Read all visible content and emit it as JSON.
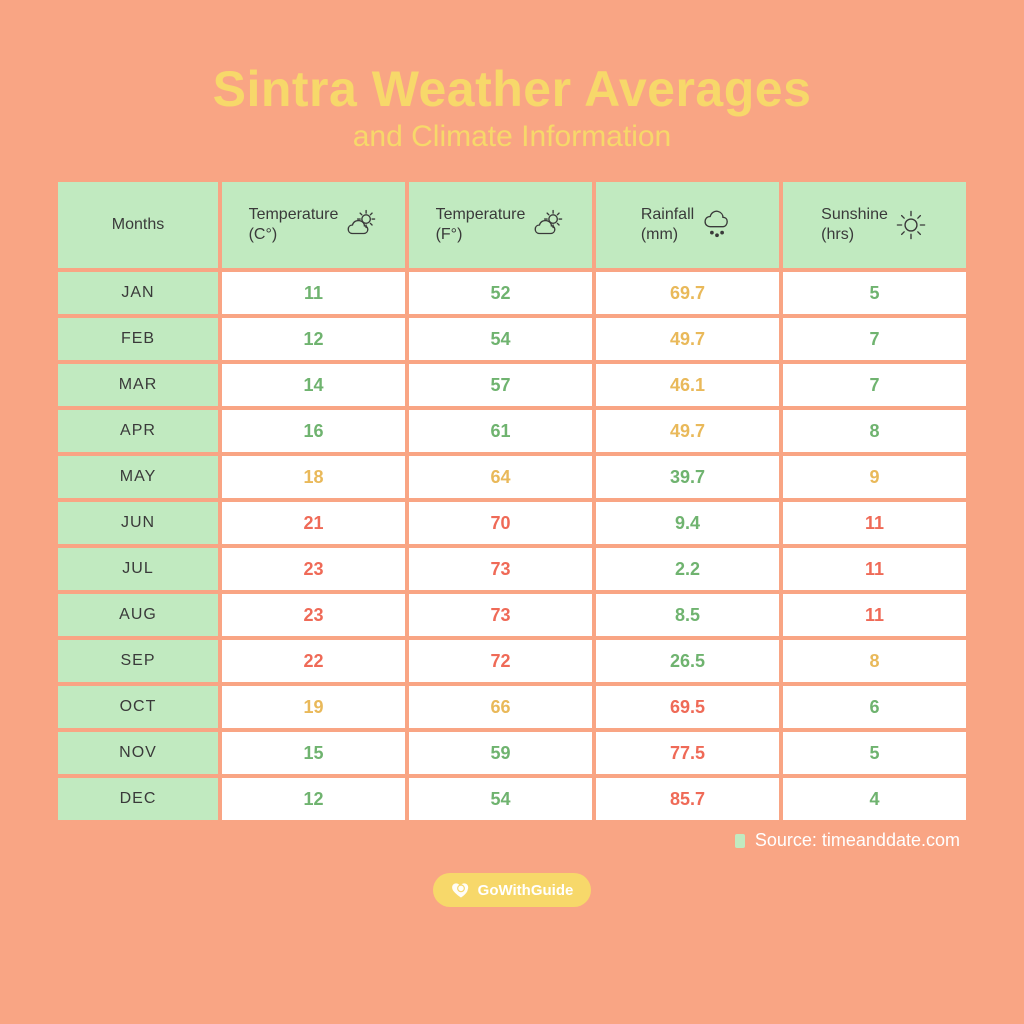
{
  "title_main": "Sintra Weather Averages",
  "title_sub": "and Climate Information",
  "background_color": "#f9a584",
  "title_color": "#f7d86a",
  "header_bg": "#c1eac0",
  "header_text_color": "#3a3a3a",
  "month_cell_bg": "#c1eac0",
  "data_cell_bg": "#ffffff",
  "grid_gap_color": "#f9a584",
  "badge_bg": "#f7d86a",
  "source_chip_color": "#c1eac0",
  "value_colors": {
    "green": "#6fb36f",
    "yellow": "#e9b95a",
    "red": "#ef6a57"
  },
  "columns": [
    {
      "label": "Months",
      "icon": null
    },
    {
      "label": "Temperature\n(C°)",
      "icon": "partly"
    },
    {
      "label": "Temperature\n(F°)",
      "icon": "partly"
    },
    {
      "label": "Rainfall\n(mm)",
      "icon": "rain"
    },
    {
      "label": "Sunshine\n(hrs)",
      "icon": "sun"
    }
  ],
  "rows": [
    {
      "month": "JAN",
      "tc": {
        "v": "11",
        "c": "green"
      },
      "tf": {
        "v": "52",
        "c": "green"
      },
      "rain": {
        "v": "69.7",
        "c": "yellow"
      },
      "sun": {
        "v": "5",
        "c": "green"
      }
    },
    {
      "month": "FEB",
      "tc": {
        "v": "12",
        "c": "green"
      },
      "tf": {
        "v": "54",
        "c": "green"
      },
      "rain": {
        "v": "49.7",
        "c": "yellow"
      },
      "sun": {
        "v": "7",
        "c": "green"
      }
    },
    {
      "month": "MAR",
      "tc": {
        "v": "14",
        "c": "green"
      },
      "tf": {
        "v": "57",
        "c": "green"
      },
      "rain": {
        "v": "46.1",
        "c": "yellow"
      },
      "sun": {
        "v": "7",
        "c": "green"
      }
    },
    {
      "month": "APR",
      "tc": {
        "v": "16",
        "c": "green"
      },
      "tf": {
        "v": "61",
        "c": "green"
      },
      "rain": {
        "v": "49.7",
        "c": "yellow"
      },
      "sun": {
        "v": "8",
        "c": "green"
      }
    },
    {
      "month": "MAY",
      "tc": {
        "v": "18",
        "c": "yellow"
      },
      "tf": {
        "v": "64",
        "c": "yellow"
      },
      "rain": {
        "v": "39.7",
        "c": "green"
      },
      "sun": {
        "v": "9",
        "c": "yellow"
      }
    },
    {
      "month": "JUN",
      "tc": {
        "v": "21",
        "c": "red"
      },
      "tf": {
        "v": "70",
        "c": "red"
      },
      "rain": {
        "v": "9.4",
        "c": "green"
      },
      "sun": {
        "v": "11",
        "c": "red"
      }
    },
    {
      "month": "JUL",
      "tc": {
        "v": "23",
        "c": "red"
      },
      "tf": {
        "v": "73",
        "c": "red"
      },
      "rain": {
        "v": "2.2",
        "c": "green"
      },
      "sun": {
        "v": "11",
        "c": "red"
      }
    },
    {
      "month": "AUG",
      "tc": {
        "v": "23",
        "c": "red"
      },
      "tf": {
        "v": "73",
        "c": "red"
      },
      "rain": {
        "v": "8.5",
        "c": "green"
      },
      "sun": {
        "v": "11",
        "c": "red"
      }
    },
    {
      "month": "SEP",
      "tc": {
        "v": "22",
        "c": "red"
      },
      "tf": {
        "v": "72",
        "c": "red"
      },
      "rain": {
        "v": "26.5",
        "c": "green"
      },
      "sun": {
        "v": "8",
        "c": "yellow"
      }
    },
    {
      "month": "OCT",
      "tc": {
        "v": "19",
        "c": "yellow"
      },
      "tf": {
        "v": "66",
        "c": "yellow"
      },
      "rain": {
        "v": "69.5",
        "c": "red"
      },
      "sun": {
        "v": "6",
        "c": "green"
      }
    },
    {
      "month": "NOV",
      "tc": {
        "v": "15",
        "c": "green"
      },
      "tf": {
        "v": "59",
        "c": "green"
      },
      "rain": {
        "v": "77.5",
        "c": "red"
      },
      "sun": {
        "v": "5",
        "c": "green"
      }
    },
    {
      "month": "DEC",
      "tc": {
        "v": "12",
        "c": "green"
      },
      "tf": {
        "v": "54",
        "c": "green"
      },
      "rain": {
        "v": "85.7",
        "c": "red"
      },
      "sun": {
        "v": "4",
        "c": "green"
      }
    }
  ],
  "source_label": "Source: timeanddate.com",
  "brand_label": "GoWithGuide"
}
